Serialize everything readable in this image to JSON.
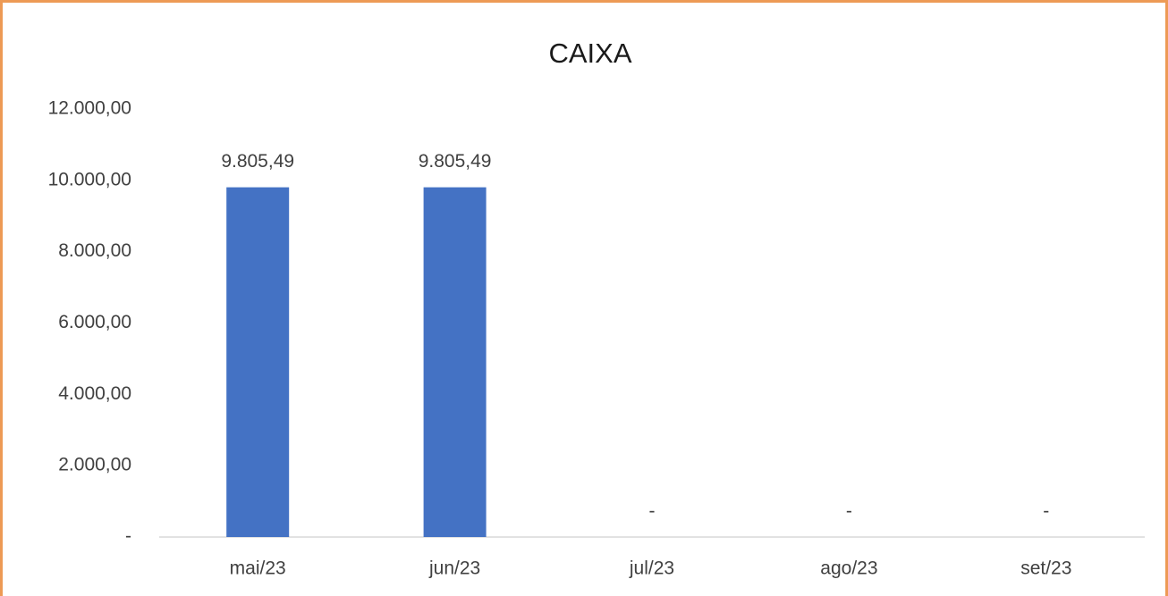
{
  "chart_data": {
    "type": "bar",
    "title": "CAIXA",
    "categories": [
      "mai/23",
      "jun/23",
      "jul/23",
      "ago/23",
      "set/23"
    ],
    "values": [
      9805.49,
      9805.49,
      0,
      0,
      0
    ],
    "value_labels": [
      "9.805,49",
      "9.805,49",
      "-",
      "-",
      "-"
    ],
    "color": "#4472c4",
    "ylim": [
      0,
      12000
    ],
    "yticks": [
      {
        "value": 0,
        "label": "-"
      },
      {
        "value": 2000,
        "label": "2.000,00"
      },
      {
        "value": 4000,
        "label": "4.000,00"
      },
      {
        "value": 6000,
        "label": "6.000,00"
      },
      {
        "value": 8000,
        "label": "8.000,00"
      },
      {
        "value": 10000,
        "label": "10.000,00"
      },
      {
        "value": 12000,
        "label": "12.000,00"
      }
    ],
    "grid": false
  }
}
